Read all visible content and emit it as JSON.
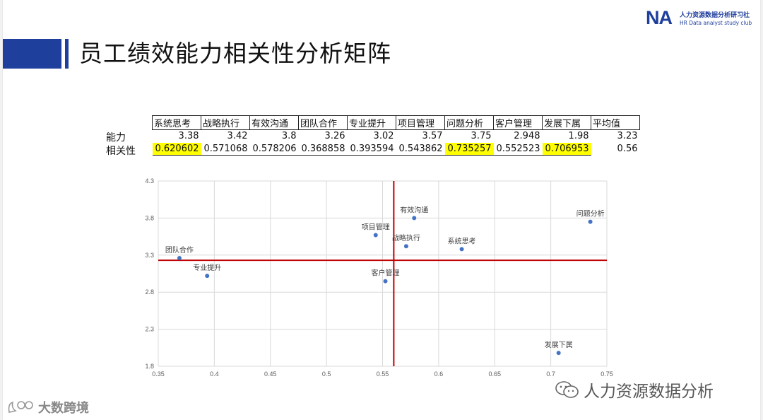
{
  "slide": {
    "title": "员工绩效能力相关性分析矩阵",
    "logo": {
      "mark": "NA",
      "cn": "人力资源数据分析研习社",
      "en": "HR Data analyst study club"
    },
    "watermark_right": "人力资源数据分析",
    "watermark_left": "大数跨境"
  },
  "table": {
    "headers": [
      "系统思考",
      "战略执行",
      "有效沟通",
      "团队合作",
      "专业提升",
      "项目管理",
      "问题分析",
      "客户管理",
      "发展下属",
      "平均值"
    ],
    "rows": [
      {
        "label": "能力",
        "values": [
          "3.38",
          "3.42",
          "3.8",
          "3.26",
          "3.02",
          "3.57",
          "3.75",
          "2.948",
          "1.98",
          "3.23"
        ]
      },
      {
        "label": "相关性",
        "values": [
          "0.620602",
          "0.571068",
          "0.578206",
          "0.368858",
          "0.393594",
          "0.543862",
          "0.735257",
          "0.552523",
          "0.706953",
          "0.56"
        ]
      }
    ],
    "highlight_color": "#ffff00",
    "highlighted": [
      "系统思考",
      "问题分析",
      "发展下属"
    ]
  },
  "chart_data": {
    "type": "scatter",
    "title": "",
    "xlabel": "",
    "ylabel": "",
    "xlim": [
      0.35,
      0.75
    ],
    "ylim": [
      1.8,
      4.3
    ],
    "xticks": [
      "0.35",
      "0.4",
      "0.45",
      "0.5",
      "0.55",
      "0.6",
      "0.65",
      "0.7",
      "0.75"
    ],
    "yticks": [
      "1.8",
      "2.3",
      "2.8",
      "3.3",
      "3.8",
      "4.3"
    ],
    "grid": true,
    "point_color": "#4472c4",
    "line_color": "#c00000",
    "reference_lines": {
      "x": 0.56,
      "y": 3.23
    },
    "points": [
      {
        "label": "系统思考",
        "x": 0.620602,
        "y": 3.38
      },
      {
        "label": "战略执行",
        "x": 0.571068,
        "y": 3.42
      },
      {
        "label": "有效沟通",
        "x": 0.578206,
        "y": 3.8
      },
      {
        "label": "团队合作",
        "x": 0.368858,
        "y": 3.26
      },
      {
        "label": "专业提升",
        "x": 0.393594,
        "y": 3.02
      },
      {
        "label": "项目管理",
        "x": 0.543862,
        "y": 3.57
      },
      {
        "label": "问题分析",
        "x": 0.735257,
        "y": 3.75
      },
      {
        "label": "客户管理",
        "x": 0.552523,
        "y": 2.948
      },
      {
        "label": "发展下属",
        "x": 0.706953,
        "y": 1.98
      }
    ]
  }
}
